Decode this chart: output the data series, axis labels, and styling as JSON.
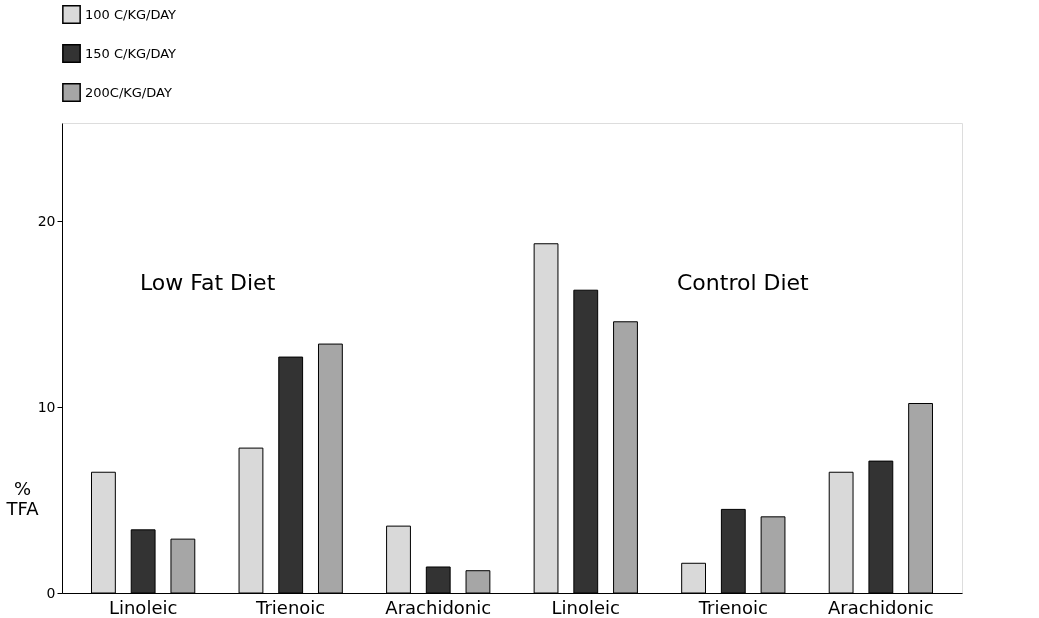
{
  "chart_data": {
    "type": "bar",
    "categories": [
      "Linoleic",
      "Trienoic",
      "Arachidonic",
      "Linoleic",
      "Trienoic",
      "Arachidonic"
    ],
    "series": [
      {
        "name": "100 C/KG/DAY",
        "color": "#d9d9d9",
        "values": [
          6.5,
          7.8,
          3.6,
          18.8,
          1.6,
          6.5
        ]
      },
      {
        "name": "150 C/KG/DAY",
        "color": "#333333",
        "values": [
          3.4,
          12.7,
          1.4,
          16.3,
          4.5,
          7.1
        ]
      },
      {
        "name": "200C/KG/DAY",
        "color": "#a6a6a6",
        "values": [
          2.9,
          13.4,
          1.2,
          14.6,
          4.1,
          10.2
        ]
      }
    ],
    "ylabel": "% TFA",
    "ylim": [
      0,
      25.3
    ],
    "yticks": [
      0,
      10,
      20
    ],
    "annotations": [
      "Low Fat Diet",
      "Control Diet"
    ],
    "grid": false,
    "legend": "top"
  }
}
